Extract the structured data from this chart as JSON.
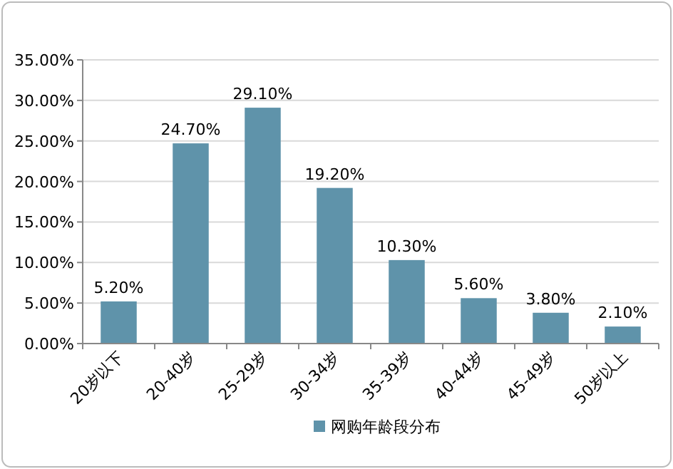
{
  "chart_data": {
    "type": "bar",
    "categories": [
      "20岁以下",
      "20-40岁",
      "25-29岁",
      "30-34岁",
      "35-39岁",
      "40-44岁",
      "45-49岁",
      "50岁以上"
    ],
    "series": [
      {
        "name": "网购年龄段分布",
        "color": "#5f93aa",
        "values": [
          5.2,
          24.7,
          29.1,
          19.2,
          10.3,
          5.6,
          3.8,
          2.1
        ],
        "value_labels": [
          "5.20%",
          "24.70%",
          "29.10%",
          "19.20%",
          "10.30%",
          "5.60%",
          "3.80%",
          "2.10%"
        ]
      }
    ],
    "ylim": [
      0,
      35
    ],
    "yticks": [
      {
        "value": 0,
        "label": "0.00%"
      },
      {
        "value": 5,
        "label": "5.00%"
      },
      {
        "value": 10,
        "label": "10.00%"
      },
      {
        "value": 15,
        "label": "15.00%"
      },
      {
        "value": 20,
        "label": "20.00%"
      },
      {
        "value": 25,
        "label": "25.00%"
      },
      {
        "value": 30,
        "label": "30.00%"
      },
      {
        "value": 35,
        "label": "35.00%"
      }
    ],
    "grid": "y",
    "legend": "bottom"
  }
}
